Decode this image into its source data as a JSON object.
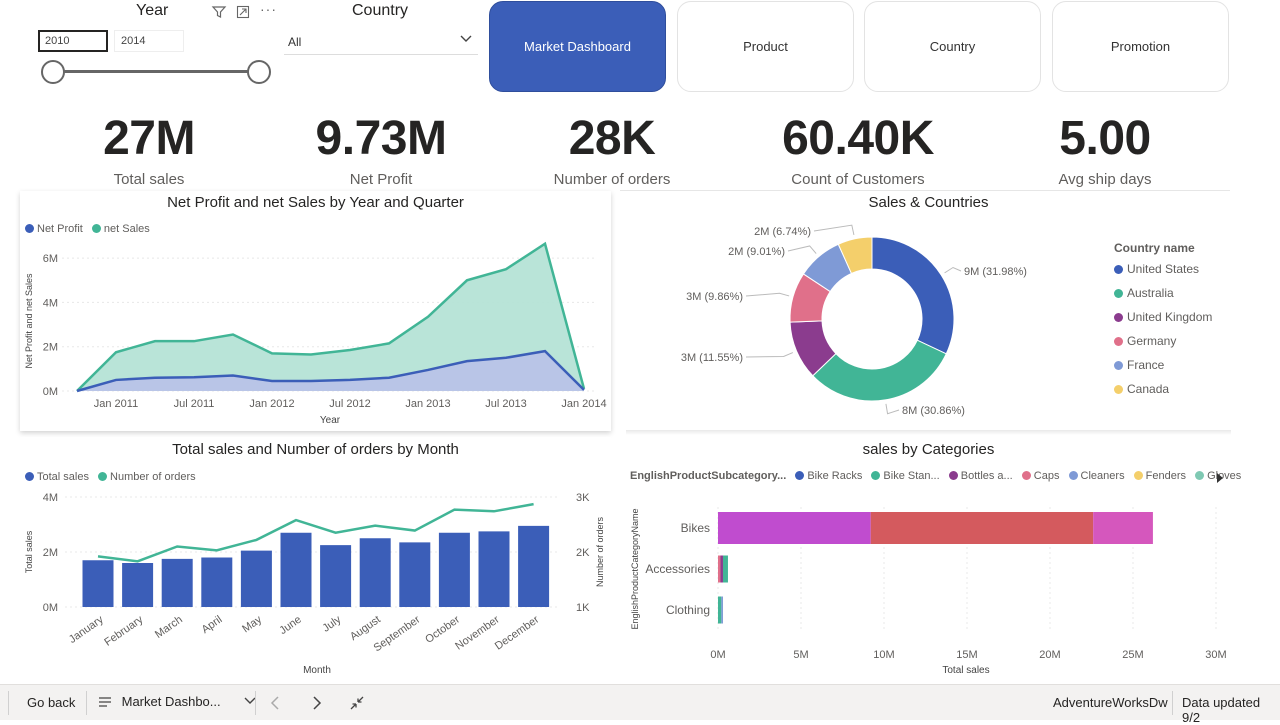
{
  "slicers": {
    "year": {
      "title": "Year",
      "from": "2010",
      "to": "2014"
    },
    "country": {
      "title": "Country",
      "selected": "All"
    },
    "icons": [
      "filter-icon",
      "focus-mode-icon",
      "more-options-icon"
    ]
  },
  "nav": {
    "buttons": [
      "Market Dashboard",
      "Product",
      "Country",
      "Promotion"
    ],
    "active": "Market Dashboard"
  },
  "kpis": [
    {
      "value": "27M",
      "label": "Total sales"
    },
    {
      "value": "9.73M",
      "label": "Net Profit"
    },
    {
      "value": "28K",
      "label": "Number of orders"
    },
    {
      "value": "60.40K",
      "label": "Count of Customers"
    },
    {
      "value": "5.00",
      "label": "Avg ship days"
    }
  ],
  "colors": {
    "dark_blue": "#3b5eb8",
    "teal": "#41b596",
    "teal_fill": "#b5e3d6",
    "purple": "#8b3c8e",
    "pink": "#e0708a",
    "light_blue": "#7f9ad6",
    "yellow": "#f4cf6b",
    "magenta": "#c04ccf",
    "red": "#d45a5e"
  },
  "chart_data": [
    {
      "type": "area",
      "title": "Net Profit and net Sales by Year and Quarter",
      "xlabel": "Year",
      "ylabel": "Net Profit and net Sales",
      "x_ticks": [
        "Jan 2011",
        "Jul 2011",
        "Jan 2012",
        "Jul 2012",
        "Jan 2013",
        "Jul 2013",
        "Jan 2014"
      ],
      "y_ticks": [
        "0M",
        "2M",
        "4M",
        "6M"
      ],
      "ylim": [
        0,
        7
      ],
      "x_points": [
        "2010 Q4",
        "2011 Q1",
        "2011 Q2",
        "2011 Q3",
        "2011 Q4",
        "2012 Q1",
        "2012 Q2",
        "2012 Q3",
        "2012 Q4",
        "2013 Q1",
        "2013 Q2",
        "2013 Q3",
        "2013 Q4",
        "2014 Q1"
      ],
      "series": [
        {
          "name": "Net Profit",
          "color": "#3b5eb8",
          "values": [
            0,
            0.5,
            0.6,
            0.62,
            0.7,
            0.45,
            0.45,
            0.5,
            0.6,
            0.95,
            1.35,
            1.5,
            1.8,
            0.05
          ]
        },
        {
          "name": "net Sales",
          "color": "#41b596",
          "values": [
            0,
            1.75,
            2.25,
            2.25,
            2.55,
            1.7,
            1.65,
            1.85,
            2.15,
            3.35,
            5.0,
            5.5,
            6.65,
            0.1
          ]
        }
      ]
    },
    {
      "type": "pie",
      "title": "Sales & Countries",
      "legend_title": "Country name",
      "slices": [
        {
          "name": "United States",
          "label": "9M (31.98%)",
          "value": 31.98,
          "color": "#3b5eb8"
        },
        {
          "name": "Australia",
          "label": "8M (30.86%)",
          "value": 30.86,
          "color": "#41b596"
        },
        {
          "name": "United Kingdom",
          "label": "3M (11.55%)",
          "value": 11.55,
          "color": "#8b3c8e"
        },
        {
          "name": "Germany",
          "label": "3M (9.86%)",
          "value": 9.86,
          "color": "#e0708a"
        },
        {
          "name": "France",
          "label": "2M (9.01%)",
          "value": 9.01,
          "color": "#7f9ad6"
        },
        {
          "name": "Canada",
          "label": "2M (6.74%)",
          "value": 6.74,
          "color": "#f4cf6b"
        }
      ]
    },
    {
      "type": "bar",
      "title": "Total sales and Number of orders by Month",
      "xlabel": "Month",
      "ylabel": "Total sales",
      "ylabel_right": "Number of orders",
      "categories": [
        "January",
        "February",
        "March",
        "April",
        "May",
        "June",
        "July",
        "August",
        "September",
        "October",
        "November",
        "December"
      ],
      "y_ticks": [
        "0M",
        "2M",
        "4M"
      ],
      "ylim": [
        0,
        4
      ],
      "y2_ticks": [
        "1K",
        "2K",
        "3K"
      ],
      "y2lim": [
        1,
        3
      ],
      "series": [
        {
          "name": "Total sales",
          "color": "#3b5eb8",
          "values": [
            1.7,
            1.6,
            1.75,
            1.8,
            2.05,
            2.7,
            2.25,
            2.5,
            2.35,
            2.7,
            2.75,
            2.95
          ]
        },
        {
          "name": "Number of orders",
          "color": "#41b596",
          "values": [
            1.92,
            1.83,
            2.1,
            2.03,
            2.22,
            2.58,
            2.35,
            2.48,
            2.39,
            2.77,
            2.74,
            2.87
          ]
        }
      ]
    },
    {
      "type": "bar",
      "orientation": "horizontal",
      "stacked": true,
      "title": "sales by Categories",
      "xlabel": "Total sales",
      "ylabel": "EnglishProductCategoryName",
      "legend_title": "EnglishProductSubcategory...",
      "legend": [
        {
          "name": "Bike Racks",
          "color": "#3b5eb8"
        },
        {
          "name": "Bike Stan...",
          "color": "#41b596"
        },
        {
          "name": "Bottles a...",
          "color": "#8b3c8e"
        },
        {
          "name": "Caps",
          "color": "#e0708a"
        },
        {
          "name": "Cleaners",
          "color": "#7f9ad6"
        },
        {
          "name": "Fenders",
          "color": "#f4cf6b"
        },
        {
          "name": "Gloves",
          "color": "#7fc9b3"
        }
      ],
      "categories": [
        "Bikes",
        "Accessories",
        "Clothing"
      ],
      "x_ticks": [
        "0M",
        "5M",
        "10M",
        "15M",
        "20M",
        "25M",
        "30M"
      ],
      "xlim": [
        0,
        30
      ],
      "stacks": [
        [
          {
            "value": 9.2,
            "color": "#c04ccf"
          },
          {
            "value": 13.4,
            "color": "#d45a5e"
          },
          {
            "value": 3.6,
            "color": "#d557bd"
          }
        ],
        [
          {
            "value": 0.15,
            "color": "#e0708a"
          },
          {
            "value": 0.15,
            "color": "#8b3c8e"
          },
          {
            "value": 0.3,
            "color": "#41b596"
          }
        ],
        [
          {
            "value": 0.2,
            "color": "#41b596"
          },
          {
            "value": 0.1,
            "color": "#7f9ad6"
          }
        ]
      ]
    }
  ],
  "bottombar": {
    "back": "Go back",
    "page": "Market Dashbo...",
    "dataset": "AdventureWorksDw",
    "updated": "Data updated 9/2"
  }
}
